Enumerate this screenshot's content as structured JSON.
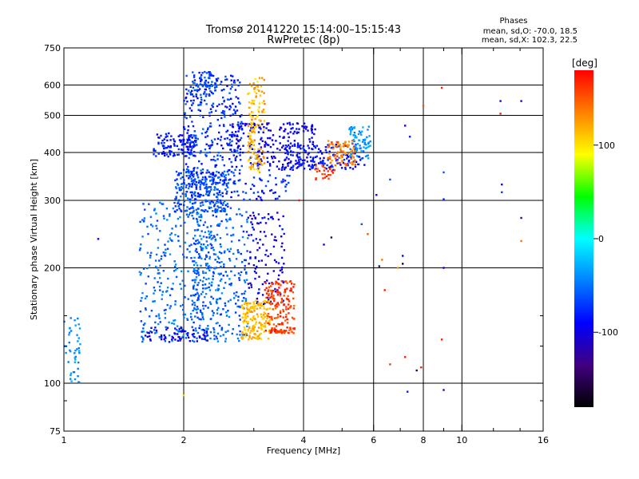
{
  "chart_data": {
    "type": "scatter",
    "title": "Tromsø 20141220 15:14:00–15:15:43",
    "subtitle": "RwPretec (8p)",
    "xlabel": "Frequency [MHz]",
    "ylabel": "Stationary phase Virtual Height [km]",
    "xscale": "log",
    "yscale": "log",
    "xlim": [
      1,
      16
    ],
    "ylim": [
      75,
      750
    ],
    "x_ticks": [
      1,
      2,
      4,
      6,
      8,
      10,
      16
    ],
    "x_tick_labels": [
      "1",
      "2",
      "4",
      "6",
      "8",
      "10",
      "16"
    ],
    "x_gridlines": [
      2,
      4,
      6,
      8,
      10
    ],
    "x_minor_ticks": [
      3,
      5,
      7,
      9,
      12,
      14
    ],
    "y_ticks": [
      75,
      100,
      200,
      300,
      400,
      500,
      600,
      750
    ],
    "y_tick_labels": [
      "75",
      "100",
      "200",
      "300",
      "400",
      "500",
      "600",
      "750"
    ],
    "y_gridlines": [
      100,
      200,
      300,
      400,
      500,
      600
    ],
    "y_minor_ticks": [
      90,
      125,
      150
    ],
    "grid": true,
    "stats_box": {
      "heading": "Phases",
      "line1": "mean, sd,O: -70.0, 18.5",
      "line2": "mean, sd,X: 102.3, 22.5"
    },
    "colorbar": {
      "label": "[deg]",
      "min": -180,
      "max": 180,
      "ticks": [
        100,
        0,
        -100
      ],
      "tick_labels": [
        "100",
        "0",
        "-100"
      ],
      "colors": [
        "#ff0000",
        "#ff8000",
        "#ffff00",
        "#00ff00",
        "#00ffff",
        "#0080ff",
        "#0000ff",
        "#400080",
        "#000000"
      ]
    },
    "series": [
      {
        "phase_mean": -70.0,
        "clusters": [
          {
            "f": [
              1.68,
              2.15
            ],
            "h": [
              390,
              450
            ],
            "n": 120,
            "phase": [
              -100,
              -70
            ]
          },
          {
            "f": [
              1.9,
              2.6
            ],
            "h": [
              280,
              360
            ],
            "n": 220,
            "phase": [
              -80,
              -45
            ]
          },
          {
            "f": [
              2.0,
              2.8
            ],
            "h": [
              330,
              640
            ],
            "n": 320,
            "phase": [
              -95,
              -50
            ]
          },
          {
            "f": [
              2.1,
              2.4
            ],
            "h": [
              560,
              650
            ],
            "n": 60,
            "phase": [
              -85,
              -50
            ]
          },
          {
            "f": [
              2.6,
              4.3
            ],
            "h": [
              360,
              480
            ],
            "n": 240,
            "phase": [
              -110,
              -80
            ]
          },
          {
            "f": [
              3.6,
              5.7
            ],
            "h": [
              360,
              420
            ],
            "n": 140,
            "phase": [
              -100,
              -70
            ]
          },
          {
            "f": [
              2.0,
              3.7
            ],
            "h": [
              300,
              360
            ],
            "n": 90,
            "phase": [
              -95,
              -60
            ]
          },
          {
            "f": [
              1.55,
              2.5
            ],
            "h": [
              128,
              300
            ],
            "n": 360,
            "phase": [
              -70,
              -35
            ]
          },
          {
            "f": [
              2.1,
              2.9
            ],
            "h": [
              128,
              290
            ],
            "n": 300,
            "phase": [
              -75,
              -40
            ]
          },
          {
            "f": [
              1.6,
              2.3
            ],
            "h": [
              128,
              140
            ],
            "n": 60,
            "phase": [
              -110,
              -85
            ]
          },
          {
            "f": [
              2.9,
              3.6
            ],
            "h": [
              160,
              280
            ],
            "n": 120,
            "phase": [
              -120,
              -80
            ]
          },
          {
            "f": [
              1.0,
              1.1
            ],
            "h": [
              100,
              150
            ],
            "n": 45,
            "phase": [
              -50,
              -30
            ]
          },
          {
            "f": [
              5.2,
              5.9
            ],
            "h": [
              385,
              470
            ],
            "n": 70,
            "phase": [
              -50,
              -25
            ]
          }
        ]
      },
      {
        "phase_mean": 102.3,
        "clusters": [
          {
            "f": [
              2.9,
              3.2
            ],
            "h": [
              355,
              630
            ],
            "n": 130,
            "phase": [
              95,
              140
            ]
          },
          {
            "f": [
              2.8,
              3.3
            ],
            "h": [
              130,
              165
            ],
            "n": 170,
            "phase": [
              100,
              130
            ]
          },
          {
            "f": [
              3.2,
              3.8
            ],
            "h": [
              135,
              185
            ],
            "n": 140,
            "phase": [
              140,
              175
            ]
          },
          {
            "f": [
              3.3,
              3.8
            ],
            "h": [
              135,
              140
            ],
            "n": 30,
            "phase": [
              150,
              175
            ]
          },
          {
            "f": [
              4.6,
              5.4
            ],
            "h": [
              370,
              430
            ],
            "n": 80,
            "phase": [
              115,
              160
            ]
          },
          {
            "f": [
              4.2,
              4.8
            ],
            "h": [
              340,
              370
            ],
            "n": 25,
            "phase": [
              150,
              175
            ]
          }
        ]
      }
    ],
    "sparse_points": [
      [
        1.22,
        238,
        -100
      ],
      [
        2.0,
        93,
        110
      ],
      [
        6.2,
        202,
        -150
      ],
      [
        7.2,
        470,
        -100
      ],
      [
        7.9,
        110,
        170
      ],
      [
        7.7,
        108,
        -150
      ],
      [
        8.9,
        590,
        170
      ],
      [
        8.0,
        530,
        150
      ],
      [
        9.0,
        355,
        -60
      ],
      [
        9.0,
        302,
        -80
      ],
      [
        9.0,
        200,
        -90
      ],
      [
        8.9,
        130,
        170
      ],
      [
        9.0,
        96,
        -110
      ],
      [
        7.3,
        95,
        -80
      ],
      [
        12.5,
        545,
        -100
      ],
      [
        14.1,
        545,
        -100
      ],
      [
        12.5,
        505,
        170
      ],
      [
        12.6,
        330,
        -100
      ],
      [
        12.6,
        315,
        -70
      ],
      [
        14.1,
        270,
        -120
      ],
      [
        14.1,
        235,
        140
      ],
      [
        6.6,
        340,
        -60
      ],
      [
        6.9,
        200,
        130
      ],
      [
        7.1,
        215,
        -90
      ],
      [
        7.1,
        205,
        -160
      ],
      [
        6.3,
        210,
        140
      ],
      [
        7.4,
        440,
        -80
      ],
      [
        5.6,
        260,
        -60
      ],
      [
        5.8,
        245,
        150
      ],
      [
        6.4,
        175,
        170
      ],
      [
        7.2,
        117,
        170
      ],
      [
        6.6,
        112,
        160
      ],
      [
        6.1,
        310,
        -100
      ],
      [
        4.5,
        230,
        -100
      ],
      [
        3.9,
        300,
        170
      ],
      [
        4.7,
        240,
        -150
      ]
    ]
  }
}
